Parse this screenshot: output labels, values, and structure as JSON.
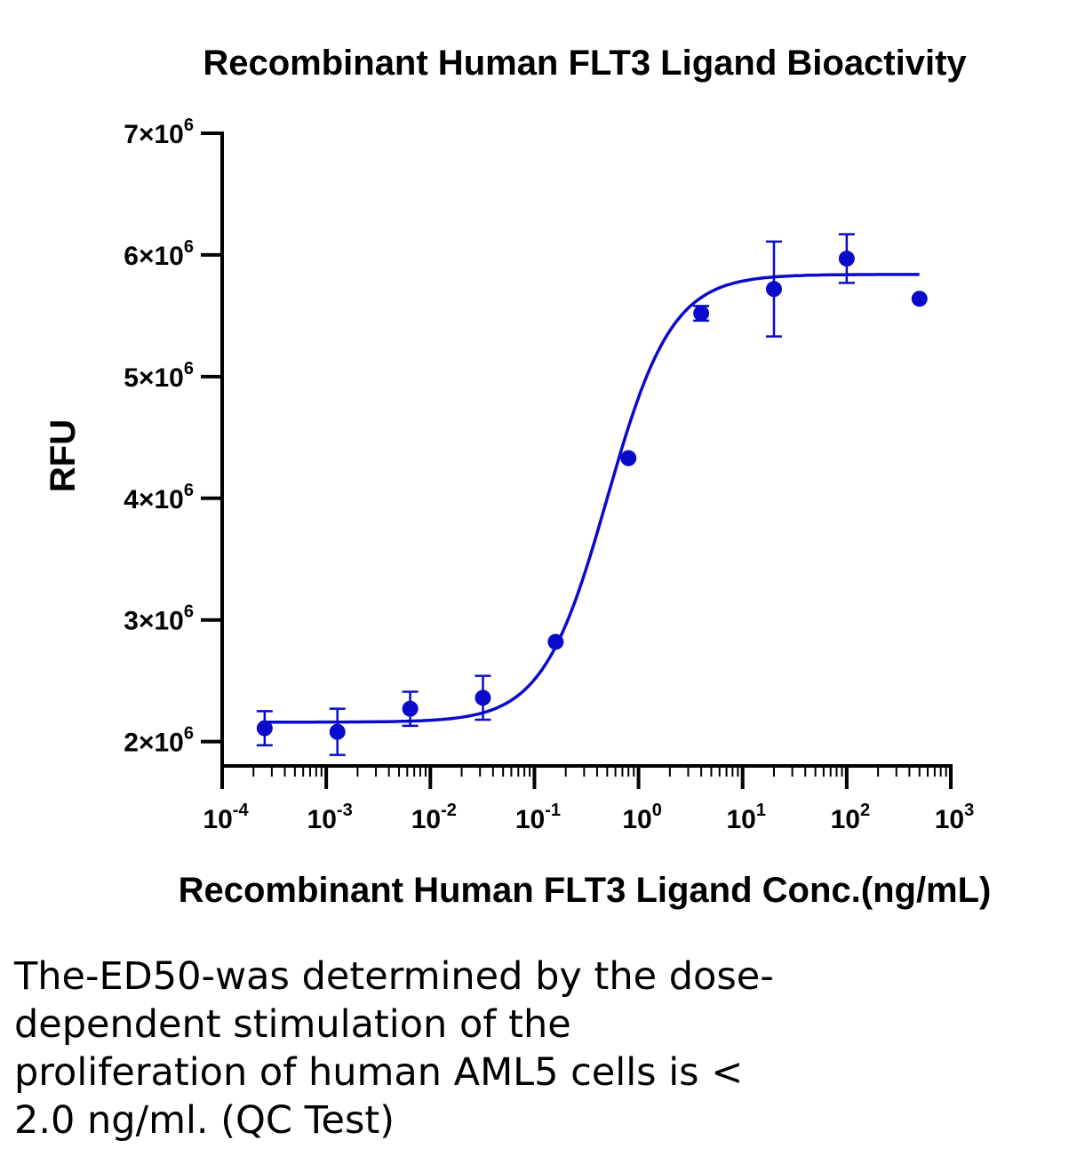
{
  "chart_data": {
    "type": "scatter",
    "title": "Recombinant Human FLT3 Ligand Bioactivity",
    "xlabel": "Recombinant Human FLT3 Ligand Conc.(ng/mL)",
    "ylabel": "RFU",
    "x_scale": "log",
    "xlim": [
      0.0001,
      1000
    ],
    "ylim": [
      1800000,
      7000000
    ],
    "x_ticks": [
      {
        "value": 0.0001,
        "base": "10",
        "exp": "-4"
      },
      {
        "value": 0.001,
        "base": "10",
        "exp": "-3"
      },
      {
        "value": 0.01,
        "base": "10",
        "exp": "-2"
      },
      {
        "value": 0.1,
        "base": "10",
        "exp": "-1"
      },
      {
        "value": 1,
        "base": "10",
        "exp": "0"
      },
      {
        "value": 10,
        "base": "10",
        "exp": "1"
      },
      {
        "value": 100,
        "base": "10",
        "exp": "2"
      },
      {
        "value": 1000,
        "base": "10",
        "exp": "3"
      }
    ],
    "y_ticks": [
      {
        "value": 2000000,
        "base": "2×10",
        "exp": "6"
      },
      {
        "value": 3000000,
        "base": "3×10",
        "exp": "6"
      },
      {
        "value": 4000000,
        "base": "4×10",
        "exp": "6"
      },
      {
        "value": 5000000,
        "base": "5×10",
        "exp": "6"
      },
      {
        "value": 6000000,
        "base": "6×10",
        "exp": "6"
      },
      {
        "value": 7000000,
        "base": "7×10",
        "exp": "6"
      }
    ],
    "series": [
      {
        "color": "#0a0acb",
        "points": [
          {
            "x": 0.000256,
            "y": 2110000,
            "err": 140000
          },
          {
            "x": 0.00128,
            "y": 2080000,
            "err": 190000
          },
          {
            "x": 0.0064,
            "y": 2270000,
            "err": 140000
          },
          {
            "x": 0.032,
            "y": 2360000,
            "err": 180000
          },
          {
            "x": 0.16,
            "y": 2820000,
            "err": 0
          },
          {
            "x": 0.8,
            "y": 4330000,
            "err": 0
          },
          {
            "x": 4,
            "y": 5520000,
            "err": 60000
          },
          {
            "x": 20,
            "y": 5720000,
            "err": 390000
          },
          {
            "x": 100,
            "y": 5970000,
            "err": 200000
          },
          {
            "x": 500,
            "y": 5640000,
            "err": 0
          }
        ],
        "fit": {
          "bottom": 2160000,
          "top": 5840000,
          "ec50": 0.5,
          "hill": 1.4,
          "x_range": [
            0.000256,
            500
          ]
        }
      }
    ]
  },
  "caption_lines": [
    "The-ED50-was determined by the dose-",
    "dependent stimulation of the",
    "proliferation of human AML5 cells is <",
    "2.0 ng/ml. (QC Test)"
  ]
}
